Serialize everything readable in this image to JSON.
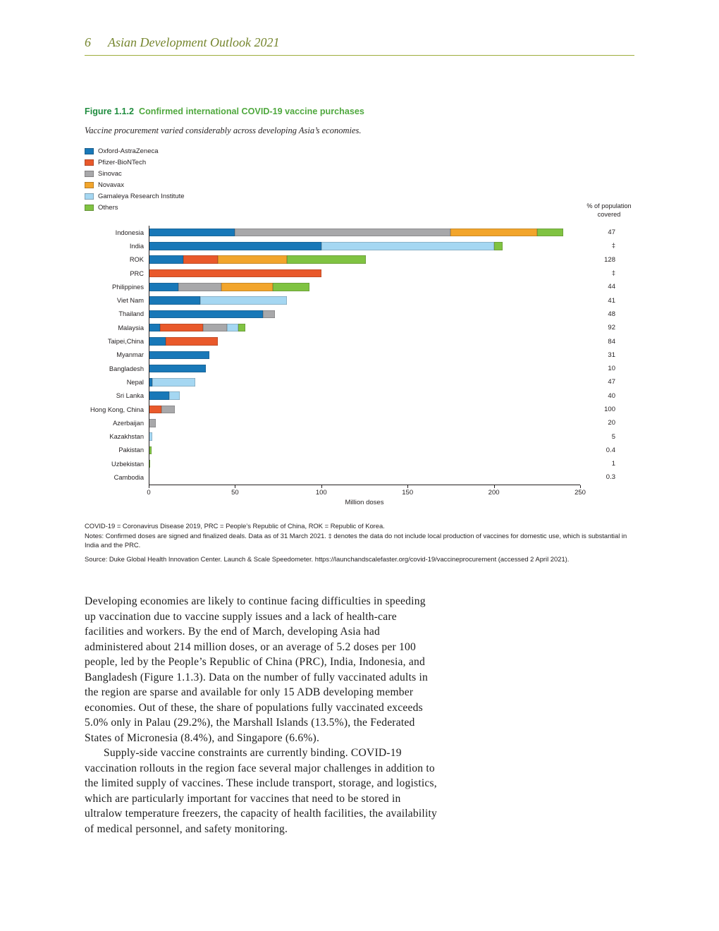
{
  "header": {
    "page_number": "6",
    "title": "Asian Development Outlook 2021"
  },
  "figure": {
    "label": "Figure 1.1.2",
    "title": "Confirmed international COVID-19 vaccine purchases",
    "subtitle": "Vaccine procurement varied considerably across developing Asia’s economies."
  },
  "chart_data": {
    "type": "bar",
    "orientation": "horizontal",
    "stacked": true,
    "unit": "million doses",
    "xlabel": "Million doses",
    "xlim": [
      0,
      250
    ],
    "xticks": [
      "0",
      "50",
      "100",
      "150",
      "200",
      "250"
    ],
    "right_column_header": "% of population covered",
    "legend_position": "top-left",
    "grid": false,
    "series": [
      {
        "name": "Oxford-AstraZeneca",
        "color": "#1878b8"
      },
      {
        "name": "Pfizer-BioNTech",
        "color": "#e9592b"
      },
      {
        "name": "Sinovac",
        "color": "#a8a8aa"
      },
      {
        "name": "Novavax",
        "color": "#f2a52c"
      },
      {
        "name": "Gamaleya Research Institute",
        "color": "#a5d7f2"
      },
      {
        "name": "Others",
        "color": "#80c342"
      }
    ],
    "rows": [
      {
        "label": "Indonesia",
        "pct_covered": "47",
        "segments": {
          "Oxford-AstraZeneca": 50,
          "Sinovac": 125,
          "Novavax": 50,
          "Others": 15
        }
      },
      {
        "label": "India",
        "pct_covered": "‡",
        "segments": {
          "Oxford-AstraZeneca": 100,
          "Gamaleya Research Institute": 100,
          "Others": 5
        }
      },
      {
        "label": "ROK",
        "pct_covered": "128",
        "segments": {
          "Oxford-AstraZeneca": 20,
          "Pfizer-BioNTech": 20,
          "Novavax": 40,
          "Others": 46
        }
      },
      {
        "label": "PRC",
        "pct_covered": "‡",
        "segments": {
          "Pfizer-BioNTech": 100
        }
      },
      {
        "label": "Philippines",
        "pct_covered": "44",
        "segments": {
          "Oxford-AstraZeneca": 17,
          "Sinovac": 25,
          "Novavax": 30,
          "Others": 21
        }
      },
      {
        "label": "Viet Nam",
        "pct_covered": "41",
        "segments": {
          "Oxford-AstraZeneca": 30,
          "Gamaleya Research Institute": 50
        }
      },
      {
        "label": "Thailand",
        "pct_covered": "48",
        "segments": {
          "Oxford-AstraZeneca": 66,
          "Sinovac": 7
        }
      },
      {
        "label": "Malaysia",
        "pct_covered": "92",
        "segments": {
          "Oxford-AstraZeneca": 6.4,
          "Pfizer-BioNTech": 25,
          "Sinovac": 14,
          "Gamaleya Research Institute": 6.4,
          "Others": 4
        }
      },
      {
        "label": "Taipei,China",
        "pct_covered": "84",
        "segments": {
          "Oxford-AstraZeneca": 10,
          "Pfizer-BioNTech": 30
        }
      },
      {
        "label": "Myanmar",
        "pct_covered": "31",
        "segments": {
          "Oxford-AstraZeneca": 35
        }
      },
      {
        "label": "Bangladesh",
        "pct_covered": "10",
        "segments": {
          "Oxford-AstraZeneca": 33
        }
      },
      {
        "label": "Nepal",
        "pct_covered": "47",
        "segments": {
          "Oxford-AstraZeneca": 2,
          "Gamaleya Research Institute": 25
        }
      },
      {
        "label": "Sri Lanka",
        "pct_covered": "40",
        "segments": {
          "Oxford-AstraZeneca": 12,
          "Gamaleya Research Institute": 6
        }
      },
      {
        "label": "Hong Kong, China",
        "pct_covered": "100",
        "segments": {
          "Pfizer-BioNTech": 7.5,
          "Sinovac": 7.5
        }
      },
      {
        "label": "Azerbaijan",
        "pct_covered": "20",
        "segments": {
          "Sinovac": 4
        }
      },
      {
        "label": "Kazakhstan",
        "pct_covered": "5",
        "segments": {
          "Gamaleya Research Institute": 2
        }
      },
      {
        "label": "Pakistan",
        "pct_covered": "0.4",
        "segments": {
          "Others": 1.7
        }
      },
      {
        "label": "Uzbekistan",
        "pct_covered": "1",
        "segments": {
          "Others": 0.7
        }
      },
      {
        "label": "Cambodia",
        "pct_covered": "0.3",
        "segments": {
          "Sinovac": 0.3
        }
      }
    ]
  },
  "notes": {
    "abbreviations": "COVID-19 = Coronavirus Disease 2019, PRC = People’s Republic of China, ROK = Republic of Korea.",
    "notes": "Notes: Confirmed doses are signed and finalized deals. Data as of 31 March 2021. ‡ denotes the data do not include local production of vaccines for domestic use, which is substantial in India and the PRC.",
    "source": "Source: Duke Global Health Innovation Center. Launch & Scale Speedometer. https://launchandscalefaster.org/covid-19/vaccineprocurement (accessed 2 April 2021)."
  },
  "body": {
    "paragraph1": "Developing economies are likely to continue facing difficulties in speeding up vaccination due to vaccine supply issues and a lack of health-care facilities and workers. By the end of March, developing Asia had administered about 214 million doses, or an average of 5.2 doses per 100 people, led by the People’s Republic of China (PRC), India, Indonesia, and Bangladesh (Figure 1.1.3). Data on the number of fully vaccinated adults in the region are sparse and available for only 15 ADB developing member economies. Out of these, the share of populations fully vaccinated exceeds 5.0% only in Palau (29.2%), the Marshall Islands (13.5%), the Federated States of Micronesia (8.4%), and Singapore (6.6%).",
    "paragraph2": "Supply-side vaccine constraints are currently binding. COVID-19 vaccination rollouts in the region face several major challenges in addition to the limited supply of vaccines. These include transport, storage, and logistics, which are particularly important for vaccines that need to be stored in ultralow temperature freezers, the capacity of health facilities, the availability of medical personnel, and safety monitoring."
  }
}
